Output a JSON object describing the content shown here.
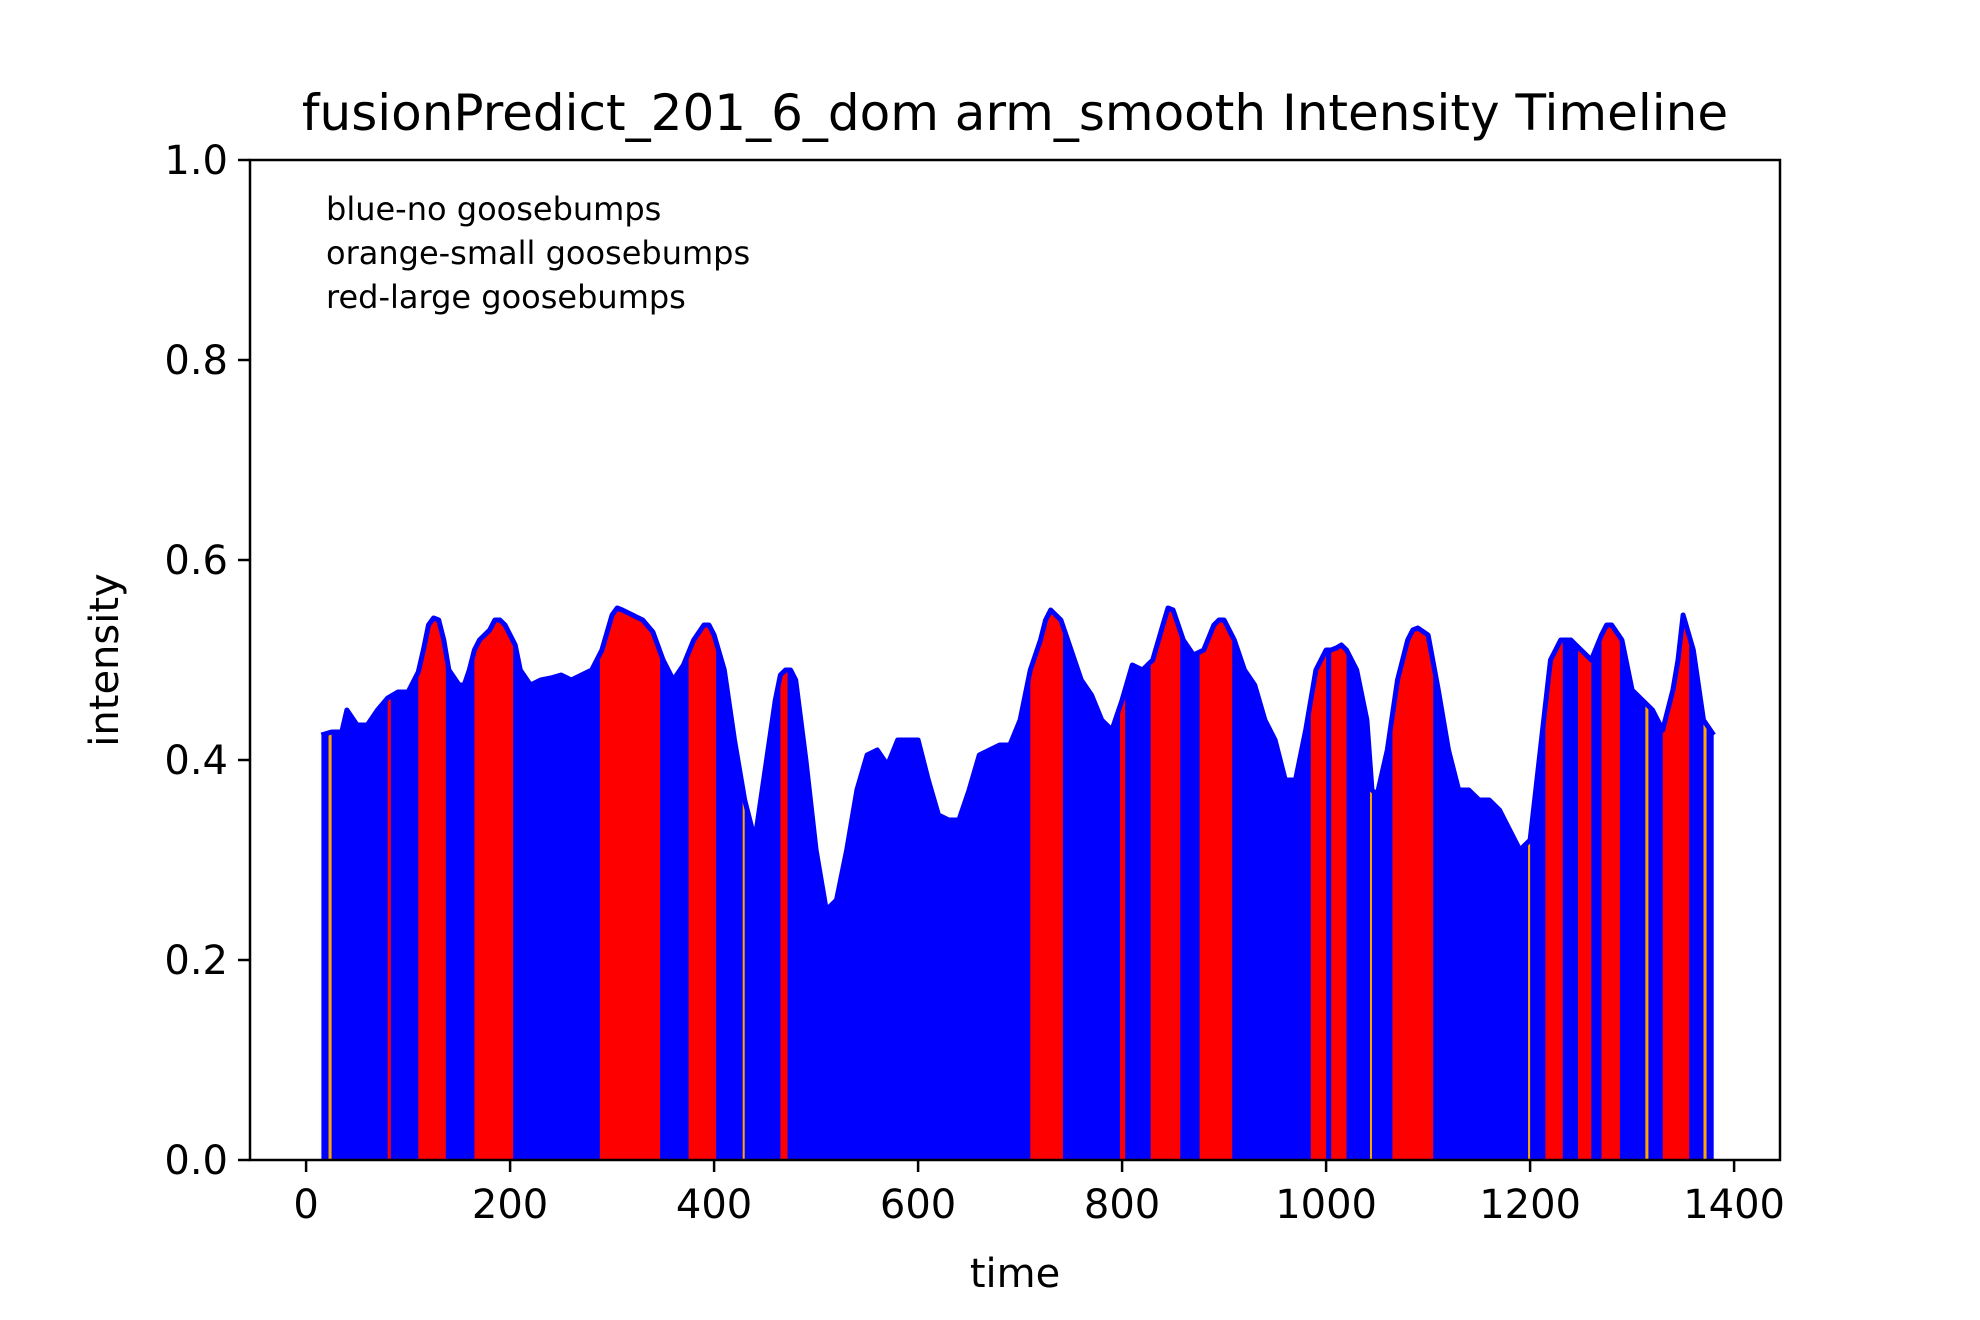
{
  "chart_data": {
    "type": "area",
    "title": "fusionPredict_201_6_dom arm_smooth Intensity Timeline",
    "xlabel": "time",
    "ylabel": "intensity",
    "xlim": [
      -55,
      1445
    ],
    "ylim": [
      0,
      1.0
    ],
    "xticks": [
      0,
      200,
      400,
      600,
      800,
      1000,
      1200,
      1400
    ],
    "yticks": [
      0.0,
      0.2,
      0.4,
      0.6,
      0.8,
      1.0
    ],
    "xtick_labels": [
      "0",
      "200",
      "400",
      "600",
      "800",
      "1000",
      "1200",
      "1400"
    ],
    "ytick_labels": [
      "0.0",
      "0.2",
      "0.4",
      "0.6",
      "0.8",
      "1.0"
    ],
    "grid": false,
    "annotation_lines": [
      "blue-no goosebumps",
      "orange-small goosebumps",
      "red-large goosebumps"
    ],
    "colors": {
      "none": "#0000ff",
      "small": "#ffa500",
      "large": "#ff0000",
      "outline": "#0000ff"
    },
    "x": [
      15,
      25,
      35,
      40,
      50,
      60,
      70,
      80,
      90,
      100,
      110,
      115,
      120,
      125,
      130,
      135,
      140,
      150,
      155,
      160,
      165,
      170,
      180,
      185,
      190,
      195,
      200,
      205,
      210,
      220,
      230,
      240,
      250,
      260,
      270,
      280,
      290,
      300,
      305,
      310,
      320,
      330,
      340,
      350,
      360,
      370,
      380,
      390,
      395,
      400,
      410,
      420,
      430,
      440,
      450,
      460,
      465,
      470,
      475,
      480,
      490,
      500,
      510,
      520,
      530,
      540,
      550,
      560,
      570,
      580,
      590,
      600,
      610,
      620,
      630,
      640,
      650,
      660,
      670,
      680,
      690,
      700,
      710,
      720,
      725,
      730,
      740,
      750,
      760,
      770,
      780,
      790,
      800,
      810,
      820,
      830,
      840,
      845,
      850,
      860,
      870,
      880,
      890,
      895,
      900,
      910,
      920,
      930,
      940,
      950,
      960,
      970,
      980,
      990,
      1000,
      1005,
      1010,
      1015,
      1020,
      1030,
      1040,
      1045,
      1050,
      1060,
      1070,
      1080,
      1085,
      1090,
      1100,
      1110,
      1120,
      1130,
      1140,
      1150,
      1160,
      1170,
      1180,
      1190,
      1200,
      1210,
      1220,
      1230,
      1240,
      1250,
      1260,
      1270,
      1275,
      1280,
      1290,
      1300,
      1310,
      1320,
      1330,
      1340,
      1345,
      1350,
      1360,
      1370,
      1380
    ],
    "y": [
      0.425,
      0.428,
      0.428,
      0.45,
      0.435,
      0.435,
      0.45,
      0.462,
      0.468,
      0.468,
      0.488,
      0.51,
      0.535,
      0.542,
      0.54,
      0.52,
      0.49,
      0.475,
      0.475,
      0.49,
      0.51,
      0.52,
      0.53,
      0.54,
      0.54,
      0.535,
      0.525,
      0.515,
      0.49,
      0.475,
      0.48,
      0.482,
      0.485,
      0.48,
      0.485,
      0.49,
      0.51,
      0.545,
      0.552,
      0.55,
      0.545,
      0.54,
      0.528,
      0.5,
      0.48,
      0.495,
      0.52,
      0.535,
      0.535,
      0.525,
      0.49,
      0.42,
      0.36,
      0.32,
      0.39,
      0.46,
      0.485,
      0.49,
      0.49,
      0.48,
      0.4,
      0.31,
      0.25,
      0.26,
      0.31,
      0.37,
      0.405,
      0.41,
      0.395,
      0.42,
      0.42,
      0.42,
      0.38,
      0.345,
      0.34,
      0.34,
      0.37,
      0.405,
      0.41,
      0.415,
      0.415,
      0.44,
      0.49,
      0.52,
      0.54,
      0.55,
      0.54,
      0.51,
      0.48,
      0.465,
      0.44,
      0.43,
      0.46,
      0.495,
      0.49,
      0.5,
      0.535,
      0.552,
      0.55,
      0.52,
      0.505,
      0.51,
      0.535,
      0.54,
      0.54,
      0.52,
      0.49,
      0.475,
      0.44,
      0.42,
      0.38,
      0.38,
      0.43,
      0.49,
      0.51,
      0.51,
      0.512,
      0.515,
      0.51,
      0.49,
      0.44,
      0.37,
      0.365,
      0.41,
      0.48,
      0.52,
      0.53,
      0.532,
      0.525,
      0.47,
      0.41,
      0.37,
      0.37,
      0.36,
      0.36,
      0.35,
      0.33,
      0.31,
      0.32,
      0.41,
      0.5,
      0.52,
      0.52,
      0.51,
      0.5,
      0.525,
      0.535,
      0.535,
      0.52,
      0.47,
      0.46,
      0.45,
      0.43,
      0.47,
      0.5,
      0.545,
      0.51,
      0.44,
      0.425
    ],
    "highlight_bands": [
      {
        "class": "small",
        "x0": 22,
        "x1": 25
      },
      {
        "class": "large",
        "x0": 80,
        "x1": 83
      },
      {
        "class": "large",
        "x0": 110,
        "x1": 137
      },
      {
        "class": "large",
        "x0": 165,
        "x1": 203
      },
      {
        "class": "large",
        "x0": 288,
        "x1": 347
      },
      {
        "class": "large",
        "x0": 375,
        "x1": 402
      },
      {
        "class": "small",
        "x0": 428,
        "x1": 430
      },
      {
        "class": "large",
        "x0": 465,
        "x1": 472
      },
      {
        "class": "large",
        "x0": 710,
        "x1": 742
      },
      {
        "class": "large",
        "x0": 798,
        "x1": 803
      },
      {
        "class": "large",
        "x0": 828,
        "x1": 857
      },
      {
        "class": "large",
        "x0": 876,
        "x1": 908
      },
      {
        "class": "large",
        "x0": 985,
        "x1": 1000
      },
      {
        "class": "large",
        "x0": 1005,
        "x1": 1020
      },
      {
        "class": "small",
        "x0": 1043,
        "x1": 1045
      },
      {
        "class": "large",
        "x0": 1065,
        "x1": 1105
      },
      {
        "class": "small",
        "x0": 1198,
        "x1": 1200
      },
      {
        "class": "large",
        "x0": 1215,
        "x1": 1232
      },
      {
        "class": "large",
        "x0": 1247,
        "x1": 1260
      },
      {
        "class": "large",
        "x0": 1270,
        "x1": 1288
      },
      {
        "class": "small",
        "x0": 1313,
        "x1": 1316
      },
      {
        "class": "large",
        "x0": 1330,
        "x1": 1356
      },
      {
        "class": "small",
        "x0": 1370,
        "x1": 1373
      }
    ]
  }
}
